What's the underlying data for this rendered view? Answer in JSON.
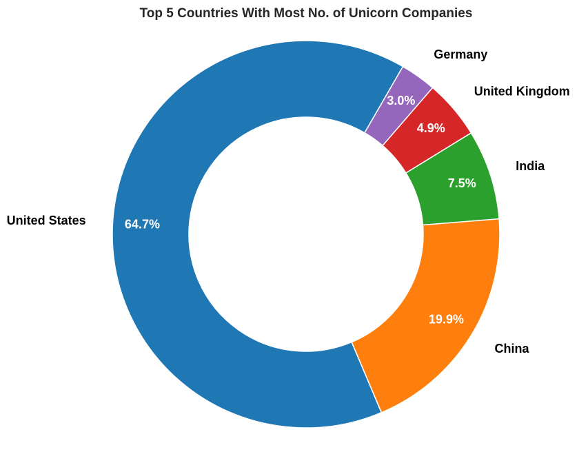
{
  "chart_data": {
    "type": "pie",
    "variant": "donut",
    "title": "Top 5 Countries With Most No. of Unicorn Companies",
    "categories": [
      "United States",
      "China",
      "India",
      "United Kingdom",
      "Germany"
    ],
    "values": [
      64.7,
      19.9,
      7.5,
      4.9,
      3.0
    ],
    "value_labels": [
      "64.7%",
      "19.9%",
      "7.5%",
      "4.9%",
      "3.0%"
    ],
    "colors": [
      "#1f77b4",
      "#ff7f0e",
      "#2ca02c",
      "#d62728",
      "#9467bd"
    ],
    "start_angle_deg": 60,
    "direction": "counterclockwise",
    "legend": "none"
  }
}
